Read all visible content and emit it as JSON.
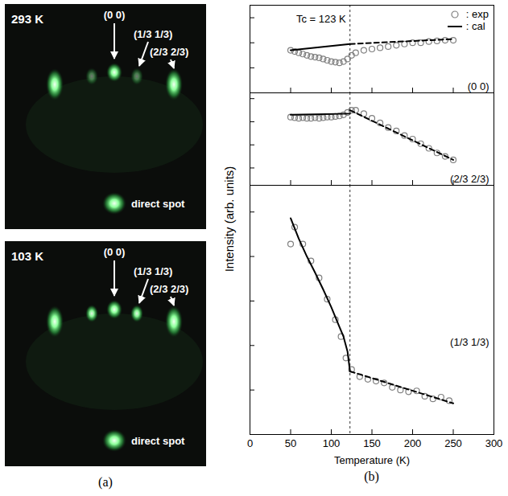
{
  "figure_labels": [
    "(a)",
    "(b)"
  ],
  "images": [
    {
      "label": "293 K",
      "spots": [
        "(0 0)",
        "(1/3 1/3)",
        "(2/3 2/3)"
      ],
      "direct": "direct spot"
    },
    {
      "label": "103 K",
      "spots": [
        "(0 0)",
        "(1/3 1/3)",
        "(2/3 2/3)"
      ],
      "direct": "direct spot"
    }
  ],
  "ylabel": "Intensity (arb. units)",
  "chart_data": [
    {
      "type": "line",
      "annotation": "(0 0)",
      "xlim": [
        0,
        300
      ],
      "xticks": [
        0,
        50,
        100,
        150,
        200,
        250,
        300
      ],
      "ylim": [
        0,
        7
      ],
      "yticks": [
        0,
        2,
        4,
        6
      ],
      "tick_labels": false,
      "legend": "upper right",
      "annotations": [
        {
          "x": 123,
          "text": "Tc = 123 K"
        }
      ],
      "series": [
        {
          "name": ": exp",
          "type": "scatter",
          "marker": "circle",
          "color": "#808080",
          "x": [
            50,
            55,
            60,
            65,
            70,
            75,
            80,
            85,
            90,
            95,
            100,
            105,
            110,
            115,
            120,
            125,
            130,
            140,
            150,
            160,
            170,
            180,
            190,
            200,
            210,
            220,
            230,
            240,
            250
          ],
          "values": [
            3.4,
            3.3,
            3.2,
            3.1,
            3.0,
            2.9,
            2.85,
            2.8,
            2.7,
            2.6,
            2.5,
            2.45,
            2.4,
            2.5,
            2.7,
            3.0,
            3.2,
            3.4,
            3.5,
            3.6,
            3.7,
            3.8,
            3.9,
            4.0,
            4.0,
            4.1,
            4.15,
            4.2,
            4.2
          ]
        },
        {
          "name": ": cal",
          "type": "line",
          "line_style": "solid",
          "color": "#000000",
          "x": [
            50,
            123
          ],
          "values": [
            3.4,
            3.9
          ]
        },
        {
          "type": "line",
          "line_style": "dashed",
          "color": "#000000",
          "x": [
            123,
            250
          ],
          "values": [
            3.9,
            4.3
          ]
        }
      ]
    },
    {
      "type": "line",
      "annotation": "(2/3 2/3)",
      "xlim": [
        0,
        300
      ],
      "xticks": [
        0,
        50,
        100,
        150,
        200,
        250,
        300
      ],
      "ylim": [
        -1.5,
        6.5
      ],
      "yticks": [
        0,
        2,
        4,
        6
      ],
      "tick_labels": false,
      "annotations": [
        {
          "x": 123
        }
      ],
      "series": [
        {
          "type": "scatter",
          "marker": "circle",
          "color": "#808080",
          "x": [
            50,
            55,
            60,
            65,
            70,
            75,
            80,
            85,
            90,
            95,
            100,
            105,
            110,
            115,
            120,
            125,
            130,
            140,
            150,
            160,
            170,
            180,
            190,
            200,
            210,
            220,
            230,
            240,
            250
          ],
          "values": [
            4.4,
            4.35,
            4.3,
            4.35,
            4.3,
            4.3,
            4.35,
            4.3,
            4.35,
            4.4,
            4.4,
            4.45,
            4.5,
            4.6,
            4.8,
            5.0,
            5.0,
            4.7,
            4.3,
            3.9,
            3.5,
            3.2,
            2.8,
            2.5,
            2.1,
            1.7,
            1.3,
            1.0,
            0.7
          ]
        },
        {
          "type": "line",
          "line_style": "solid",
          "color": "#000000",
          "x": [
            50,
            123
          ],
          "values": [
            4.6,
            4.7
          ]
        },
        {
          "type": "line",
          "line_style": "dashed",
          "color": "#000000",
          "x": [
            123,
            250
          ],
          "values": [
            5.0,
            0.7
          ]
        }
      ]
    },
    {
      "type": "line",
      "annotation": "(1/3 1/3)",
      "xlim": [
        0,
        300
      ],
      "xticks": [
        0,
        50,
        100,
        150,
        200,
        250,
        300
      ],
      "ylim": [
        0,
        28
      ],
      "yticks": [
        0,
        5,
        10,
        15,
        20,
        25
      ],
      "tick_labels": "x",
      "xlabel": "Temperature (K)",
      "annotations": [
        {
          "x": 123
        }
      ],
      "series": [
        {
          "type": "scatter",
          "marker": "circle",
          "color": "#808080",
          "x": [
            50,
            55,
            65,
            75,
            85,
            95,
            105,
            112,
            118,
            125,
            135,
            145,
            155,
            165,
            175,
            185,
            195,
            205,
            215,
            225,
            235,
            245
          ],
          "values": [
            21.4,
            23.3,
            21.4,
            19.5,
            17.6,
            15.2,
            12.9,
            11.0,
            8.6,
            7.3,
            6.5,
            6.2,
            6.0,
            5.8,
            5.3,
            5.0,
            4.8,
            4.9,
            4.3,
            4.0,
            4.2,
            3.8
          ]
        },
        {
          "type": "line",
          "line_style": "solid",
          "color": "#000000",
          "x": [
            50,
            60,
            70,
            80,
            90,
            100,
            110,
            115,
            120,
            123
          ],
          "values": [
            24.3,
            22.0,
            20.0,
            18.2,
            16.3,
            14.3,
            12.1,
            11.0,
            9.3,
            7.1
          ]
        },
        {
          "type": "line",
          "line_style": "dashed",
          "color": "#000000",
          "x": [
            123,
            250
          ],
          "values": [
            7.1,
            3.5
          ]
        }
      ]
    }
  ]
}
